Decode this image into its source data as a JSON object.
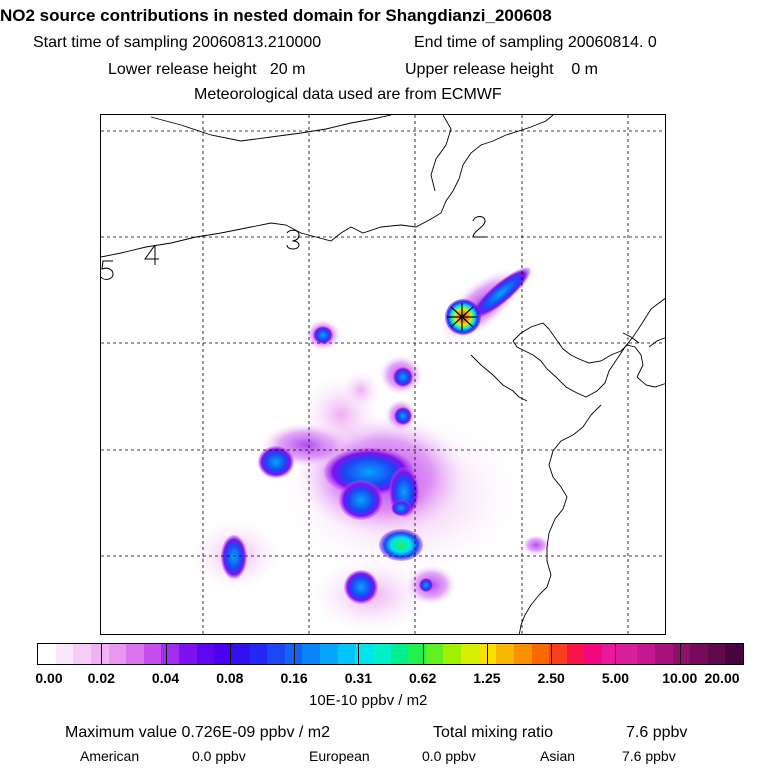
{
  "header": {
    "title": "NO2 source contributions in nested domain for Shangdianzi_200608",
    "start_label": "Start time of sampling 20060813.210000",
    "end_label": "End time of sampling 20060814.     0",
    "lower_label": "Lower release height   20 m",
    "upper_label": "Upper release height    0 m",
    "met_label": "Meteorological data used are from ECMWF"
  },
  "map": {
    "region_labels": [
      "2",
      "3",
      "4",
      "5"
    ],
    "station_marker": "asterisk-star"
  },
  "colorbar": {
    "tick_labels": [
      "0.00",
      "0.02",
      "0.04",
      "0.08",
      "0.16",
      "0.31",
      "0.62",
      "1.25",
      "2.50",
      "5.00",
      "10.00",
      "20.00"
    ],
    "unit_label": "10E-10 ppbv / m2",
    "colors": [
      "#ffffff",
      "#fbe7fb",
      "#f6cdf6",
      "#efb2f2",
      "#e998ef",
      "#dc74ef",
      "#c64df0",
      "#a22cf0",
      "#7c12f0",
      "#5f06f0",
      "#4a00f0",
      "#3210f0",
      "#2428f2",
      "#1a46f4",
      "#1164f6",
      "#0a84f8",
      "#06a4fa",
      "#03c4fc",
      "#00e4f0",
      "#00f0c8",
      "#00f090",
      "#20f050",
      "#60f020",
      "#a0f000",
      "#d8f000",
      "#f8e000",
      "#f8b800",
      "#f89000",
      "#f86800",
      "#f84020",
      "#f81448",
      "#f0087c",
      "#e8189c",
      "#d8209c",
      "#c41890",
      "#a8127c",
      "#900e6c",
      "#780a5c",
      "#60084c",
      "#480440"
    ]
  },
  "footer": {
    "max_label": "Maximum value  0.726E-09 ppbv / m2",
    "total_label": "Total mixing ratio",
    "total_value": "7.6 ppbv",
    "american_label": "American",
    "american_value": "0.0 ppbv",
    "european_label": "European",
    "european_value": "0.0 ppbv",
    "asian_label": "Asian",
    "asian_value": "7.6 ppbv"
  }
}
